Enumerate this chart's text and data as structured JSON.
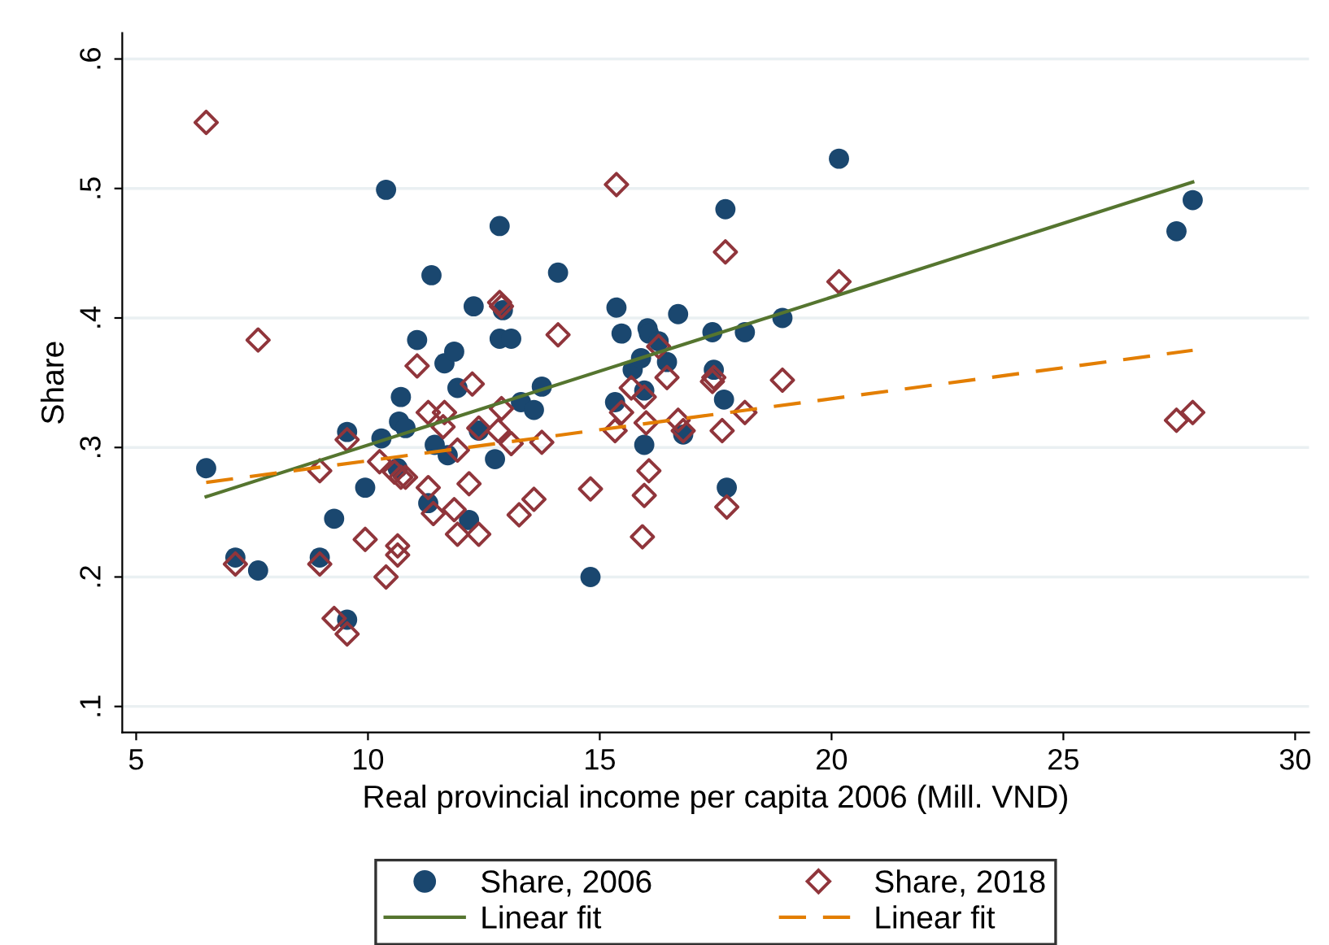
{
  "chart_data": {
    "type": "scatter",
    "xlabel": "Real provincial income per capita 2006 (Mill. VND)",
    "ylabel": "Share",
    "xlim": [
      4.7,
      30.3
    ],
    "ylim": [
      0.08,
      0.62
    ],
    "xticks": [
      5,
      10,
      15,
      20,
      25,
      30
    ],
    "yticks": [
      {
        "value": 0.1,
        "label": ".1"
      },
      {
        "value": 0.2,
        "label": ".2"
      },
      {
        "value": 0.3,
        "label": ".3"
      },
      {
        "value": 0.4,
        "label": ".4"
      },
      {
        "value": 0.5,
        "label": ".5"
      },
      {
        "value": 0.6,
        "label": ".6"
      }
    ],
    "grid": "y",
    "legend": "bottom",
    "series": [
      {
        "name": "Share, 2006",
        "marker": "circle",
        "color": "#1a476f",
        "x": [
          6.51,
          7.14,
          7.63,
          8.96,
          9.27,
          9.55,
          9.55,
          9.94,
          10.29,
          10.39,
          10.67,
          10.71,
          10.64,
          10.81,
          11.06,
          11.37,
          11.3,
          11.44,
          11.65,
          11.86,
          11.72,
          11.93,
          12.18,
          12.28,
          12.39,
          12.84,
          12.91,
          12.84,
          13.09,
          12.74,
          13.3,
          13.58,
          13.75,
          14.1,
          14.8,
          15.36,
          15.47,
          15.33,
          15.71,
          15.96,
          15.89,
          16.03,
          16.06,
          16.27,
          16.45,
          15.96,
          16.69,
          16.8,
          17.43,
          17.46,
          17.68,
          17.71,
          17.74,
          18.13,
          18.94,
          20.16,
          27.44,
          27.79
        ],
        "values": [
          0.284,
          0.215,
          0.205,
          0.215,
          0.245,
          0.312,
          0.167,
          0.269,
          0.307,
          0.499,
          0.32,
          0.339,
          0.284,
          0.315,
          0.383,
          0.433,
          0.257,
          0.302,
          0.365,
          0.374,
          0.294,
          0.346,
          0.244,
          0.409,
          0.313,
          0.471,
          0.406,
          0.384,
          0.384,
          0.291,
          0.335,
          0.329,
          0.347,
          0.435,
          0.2,
          0.408,
          0.388,
          0.335,
          0.36,
          0.344,
          0.369,
          0.392,
          0.388,
          0.382,
          0.366,
          0.302,
          0.403,
          0.31,
          0.389,
          0.36,
          0.337,
          0.484,
          0.269,
          0.389,
          0.4,
          0.523,
          0.467,
          0.491
        ]
      },
      {
        "name": "Share, 2018",
        "marker": "diamond",
        "color": "#90353b",
        "x": [
          6.51,
          7.63,
          7.14,
          8.96,
          8.96,
          9.27,
          9.55,
          9.55,
          9.94,
          10.39,
          10.25,
          10.57,
          10.71,
          10.81,
          10.64,
          10.64,
          11.06,
          11.3,
          11.41,
          11.3,
          11.65,
          11.62,
          11.86,
          11.93,
          12.18,
          12.25,
          12.39,
          12.39,
          12.81,
          12.88,
          12.84,
          12.88,
          13.09,
          13.26,
          13.58,
          13.75,
          14.1,
          11.93,
          14.8,
          15.36,
          15.33,
          15.47,
          15.68,
          15.96,
          16.0,
          15.96,
          15.92,
          16.06,
          16.27,
          16.45,
          16.69,
          16.8,
          17.46,
          17.43,
          17.64,
          17.71,
          17.74,
          18.13,
          18.94,
          20.16,
          27.44,
          27.79
        ],
        "values": [
          0.551,
          0.383,
          0.21,
          0.21,
          0.282,
          0.168,
          0.156,
          0.306,
          0.229,
          0.2,
          0.289,
          0.281,
          0.277,
          0.277,
          0.224,
          0.217,
          0.363,
          0.269,
          0.249,
          0.327,
          0.327,
          0.316,
          0.252,
          0.233,
          0.272,
          0.349,
          0.233,
          0.315,
          0.313,
          0.33,
          0.412,
          0.409,
          0.303,
          0.248,
          0.26,
          0.304,
          0.387,
          0.298,
          0.268,
          0.503,
          0.313,
          0.327,
          0.346,
          0.339,
          0.319,
          0.263,
          0.231,
          0.282,
          0.378,
          0.354,
          0.321,
          0.313,
          0.354,
          0.351,
          0.313,
          0.451,
          0.254,
          0.327,
          0.352,
          0.428,
          0.321,
          0.327
        ]
      },
      {
        "name": "Linear fit",
        "type": "line",
        "line_style": "solid",
        "color": "#55752f",
        "x": [
          6.51,
          27.79
        ],
        "values": [
          0.262,
          0.505
        ]
      },
      {
        "name": "Linear fit",
        "type": "line",
        "line_style": "dashed",
        "color": "#e37e00",
        "x": [
          6.51,
          27.79
        ],
        "values": [
          0.273,
          0.375
        ]
      }
    ]
  }
}
